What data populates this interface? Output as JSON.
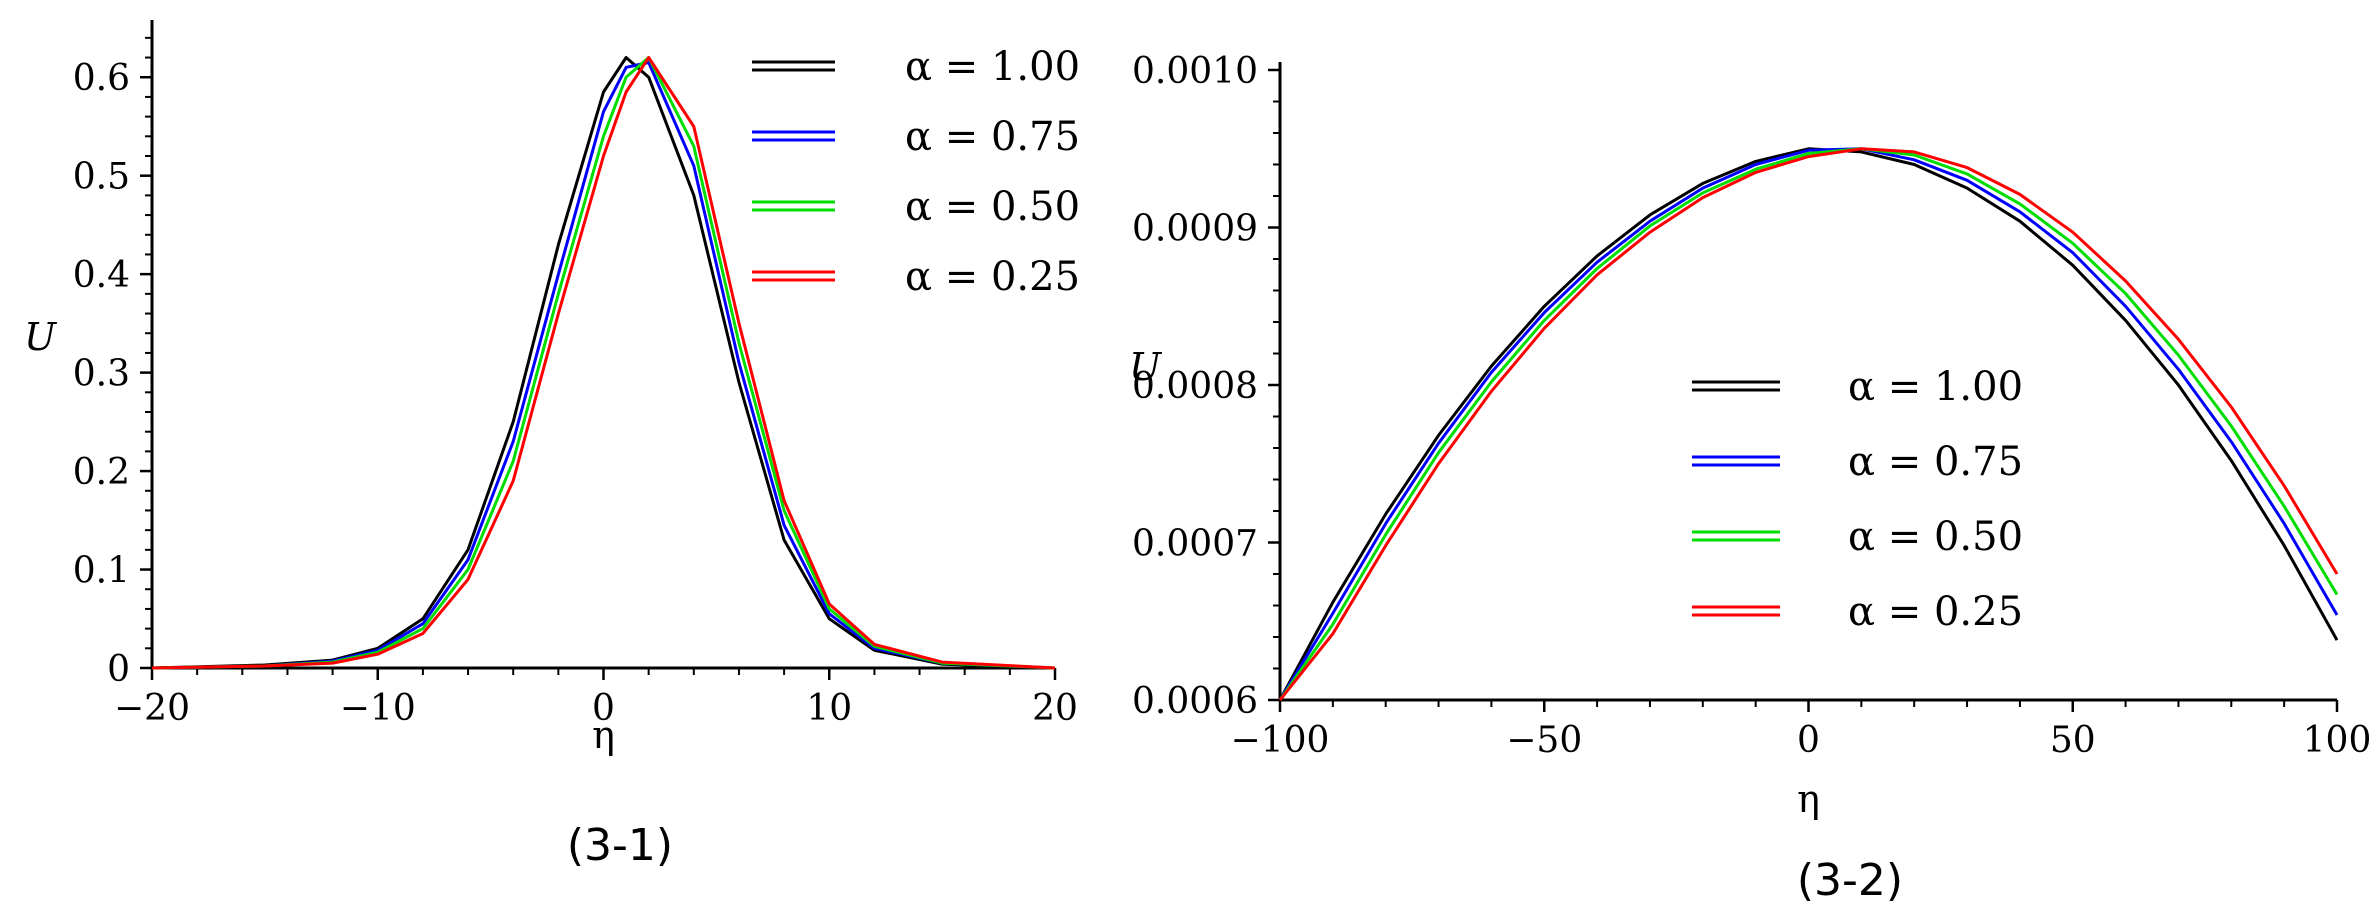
{
  "chart_data": [
    {
      "type": "line",
      "caption": "(3-1)",
      "title": "",
      "xlabel": "η",
      "ylabel": "U",
      "xlim": [
        -20,
        20
      ],
      "ylim": [
        0,
        0.65
      ],
      "xticks": [
        -20,
        -10,
        0,
        10,
        20
      ],
      "xtick_labels": [
        "−20",
        "−10",
        "0",
        "10",
        "20"
      ],
      "yticks": [
        0,
        0.1,
        0.2,
        0.3,
        0.4,
        0.5,
        0.6
      ],
      "ytick_labels": [
        "0",
        "0.1",
        "0.2",
        "0.3",
        "0.4",
        "0.5",
        "0.6"
      ],
      "grid": false,
      "legend_position": "top-right",
      "x": [
        -20,
        -15,
        -12,
        -10,
        -8,
        -6,
        -4,
        -2,
        0,
        1,
        2,
        4,
        6,
        8,
        10,
        12,
        15,
        20
      ],
      "series": [
        {
          "name": "α = 1.00",
          "color": "#000000",
          "values": [
            0.0,
            0.003,
            0.008,
            0.02,
            0.05,
            0.12,
            0.25,
            0.43,
            0.585,
            0.62,
            0.6,
            0.48,
            0.29,
            0.13,
            0.05,
            0.018,
            0.004,
            0.0
          ]
        },
        {
          "name": "α = 0.75",
          "color": "#0000ff",
          "values": [
            0.0,
            0.002,
            0.007,
            0.018,
            0.045,
            0.11,
            0.23,
            0.4,
            0.565,
            0.61,
            0.615,
            0.51,
            0.31,
            0.145,
            0.055,
            0.02,
            0.005,
            0.0
          ]
        },
        {
          "name": "α = 0.50",
          "color": "#00dd00",
          "values": [
            0.0,
            0.002,
            0.006,
            0.016,
            0.04,
            0.1,
            0.21,
            0.38,
            0.54,
            0.6,
            0.62,
            0.53,
            0.33,
            0.16,
            0.06,
            0.022,
            0.005,
            0.0
          ]
        },
        {
          "name": "α = 0.25",
          "color": "#ff0000",
          "values": [
            0.0,
            0.002,
            0.005,
            0.014,
            0.035,
            0.09,
            0.19,
            0.36,
            0.52,
            0.585,
            0.62,
            0.55,
            0.35,
            0.17,
            0.065,
            0.024,
            0.006,
            0.0
          ]
        }
      ]
    },
    {
      "type": "line",
      "caption": "(3-2)",
      "title": "",
      "xlabel": "η",
      "ylabel": "U",
      "xlim": [
        -100,
        100
      ],
      "ylim": [
        0.0006,
        0.001
      ],
      "xticks": [
        -100,
        -50,
        0,
        50,
        100
      ],
      "xtick_labels": [
        "−100",
        "−50",
        "0",
        "50",
        "100"
      ],
      "yticks": [
        0.0006,
        0.0007,
        0.0008,
        0.0009,
        0.001
      ],
      "ytick_labels": [
        "0.0006",
        "0.0007",
        "0.0008",
        "0.0009",
        "0.0010"
      ],
      "grid": false,
      "legend_position": "center",
      "x": [
        -100,
        -90,
        -80,
        -70,
        -60,
        -50,
        -40,
        -30,
        -20,
        -10,
        0,
        10,
        20,
        30,
        40,
        50,
        60,
        70,
        80,
        90,
        100
      ],
      "series": [
        {
          "name": "α = 1.00",
          "color": "#000000",
          "values": [
            0.0006,
            0.000662,
            0.000718,
            0.000768,
            0.000812,
            0.00085,
            0.000882,
            0.000908,
            0.000928,
            0.000942,
            0.00095,
            0.000948,
            0.00094,
            0.000925,
            0.000904,
            0.000876,
            0.000841,
            0.0008,
            0.000752,
            0.000698,
            0.000638
          ]
        },
        {
          "name": "α = 0.75",
          "color": "#0000ff",
          "values": [
            0.0006,
            0.000655,
            0.000712,
            0.000763,
            0.000808,
            0.000846,
            0.000878,
            0.000904,
            0.000925,
            0.00094,
            0.000949,
            0.00095,
            0.000943,
            0.00093,
            0.00091,
            0.000884,
            0.00085,
            0.00081,
            0.000764,
            0.000712,
            0.000654
          ]
        },
        {
          "name": "α = 0.50",
          "color": "#00dd00",
          "values": [
            0.0006,
            0.000648,
            0.000705,
            0.000757,
            0.000802,
            0.000841,
            0.000874,
            0.000901,
            0.000922,
            0.000937,
            0.000947,
            0.00095,
            0.000946,
            0.000934,
            0.000915,
            0.00089,
            0.000858,
            0.000819,
            0.000774,
            0.000723,
            0.000667
          ]
        },
        {
          "name": "α = 0.25",
          "color": "#ff0000",
          "values": [
            0.0006,
            0.000642,
            0.000698,
            0.00075,
            0.000796,
            0.000836,
            0.00087,
            0.000897,
            0.000919,
            0.000935,
            0.000945,
            0.00095,
            0.000948,
            0.000938,
            0.000921,
            0.000897,
            0.000866,
            0.000829,
            0.000786,
            0.000736,
            0.00068
          ]
        }
      ]
    }
  ]
}
